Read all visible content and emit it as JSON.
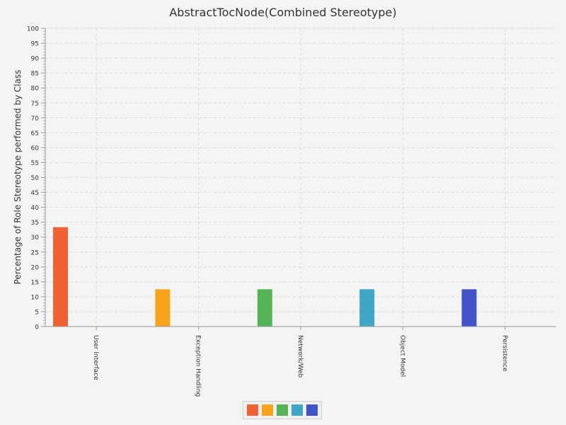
{
  "chart_data": {
    "type": "bar",
    "title": "AbstractTocNode(Combined Stereotype)",
    "ylabel": "Percentage of Role Stereotype performed by Class",
    "xlabel": "",
    "ylim": [
      0,
      100
    ],
    "y_tick_step": 5,
    "grid": true,
    "categories": [
      "User Interface",
      "Exception Handling",
      "Network/Web",
      "Object Model",
      "Persistence"
    ],
    "values": [
      33.33,
      12.5,
      12.5,
      12.5,
      12.5
    ],
    "colors": [
      "#f06233",
      "#f7a31c",
      "#55b556",
      "#3fa6c7",
      "#4053c9"
    ],
    "legend": {
      "position": "bottom",
      "entries": [
        "",
        "",
        "",
        "",
        ""
      ]
    }
  }
}
